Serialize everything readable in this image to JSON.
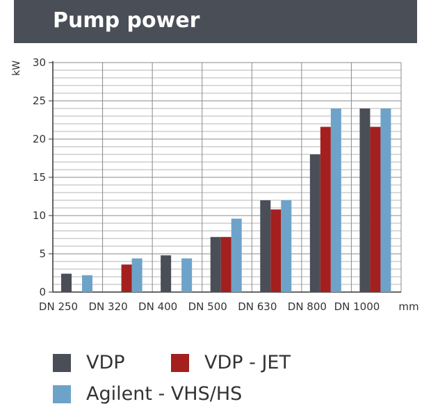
{
  "chart_data": {
    "type": "bar",
    "title": "Pump power",
    "ylabel": "kW",
    "xlabel": "mm",
    "ylim": [
      0,
      30
    ],
    "yticks": [
      0,
      5,
      10,
      15,
      20,
      25,
      30
    ],
    "grid": true,
    "legend_position": "bottom",
    "categories": [
      "DN 250",
      "DN 320",
      "DN 400",
      "DN 500",
      "DN 630",
      "DN 800",
      "DN 1000"
    ],
    "series": [
      {
        "name": "VDP",
        "color": "#4a4e57",
        "values": [
          2.4,
          null,
          4.8,
          7.2,
          12,
          18,
          24
        ]
      },
      {
        "name": "VDP - JET",
        "color": "#a3201f",
        "values": [
          null,
          3.6,
          null,
          7.2,
          10.8,
          21.6,
          21.6
        ]
      },
      {
        "name": "Agilent - VHS/HS",
        "color": "#6ea3c9",
        "values": [
          2.2,
          4.4,
          4.4,
          9.6,
          12,
          24,
          24
        ]
      }
    ]
  }
}
